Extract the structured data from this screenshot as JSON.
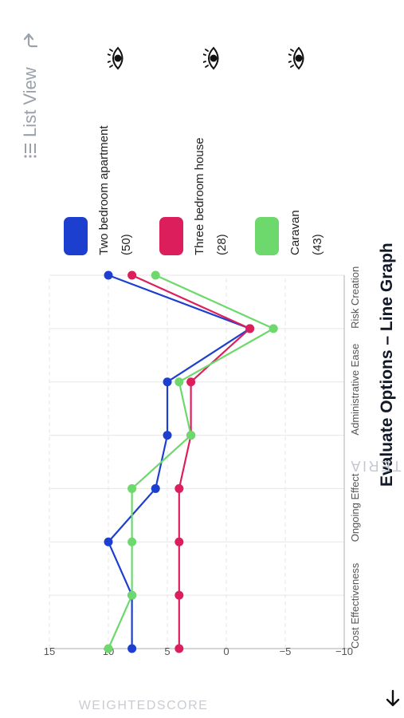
{
  "header": {
    "title": "Evaluate Options – Line Graph",
    "list_view_label": "List View"
  },
  "icons": {
    "back": "arrow-left-icon",
    "list": "list-icon",
    "share": "share-arrow-icon",
    "visibility": "eye-icon"
  },
  "colors": {
    "series_1": "#1d3fcf",
    "series_2": "#dc1f5c",
    "series_3": "#6dd86c"
  },
  "legend": [
    {
      "name": "Two bedroom apartment",
      "count": "(50)",
      "color": "#1d3fcf"
    },
    {
      "name": "Three bedroom house",
      "count": "(28)",
      "color": "#dc1f5c"
    },
    {
      "name": "Caravan",
      "count": "(43)",
      "color": "#6dd86c"
    }
  ],
  "chart_data": {
    "type": "line",
    "xlabel": "CRITERIA",
    "ylabel": "WEIGHTEDSCORE",
    "categories": [
      "Cost Effectiveness",
      "",
      "Ongoing Effect",
      "",
      "Administrative Ease",
      "",
      "Risk Creation",
      ""
    ],
    "ylim": [
      -10,
      15
    ],
    "yticks": [
      -10,
      -5,
      0,
      5,
      10,
      15
    ],
    "ytick_labels": [
      "−10",
      "−5",
      "0",
      "5",
      "10",
      "15"
    ],
    "grid": true,
    "series": [
      {
        "name": "Two bedroom apartment",
        "color": "#1d3fcf",
        "values": [
          8,
          8,
          10,
          6,
          5,
          5,
          -2,
          10
        ]
      },
      {
        "name": "Three bedroom house",
        "color": "#dc1f5c",
        "values": [
          4,
          4,
          4,
          4,
          3,
          3,
          -2,
          8
        ]
      },
      {
        "name": "Caravan",
        "color": "#6dd86c",
        "values": [
          10,
          8,
          8,
          8,
          3,
          4,
          -4,
          6
        ]
      }
    ]
  }
}
